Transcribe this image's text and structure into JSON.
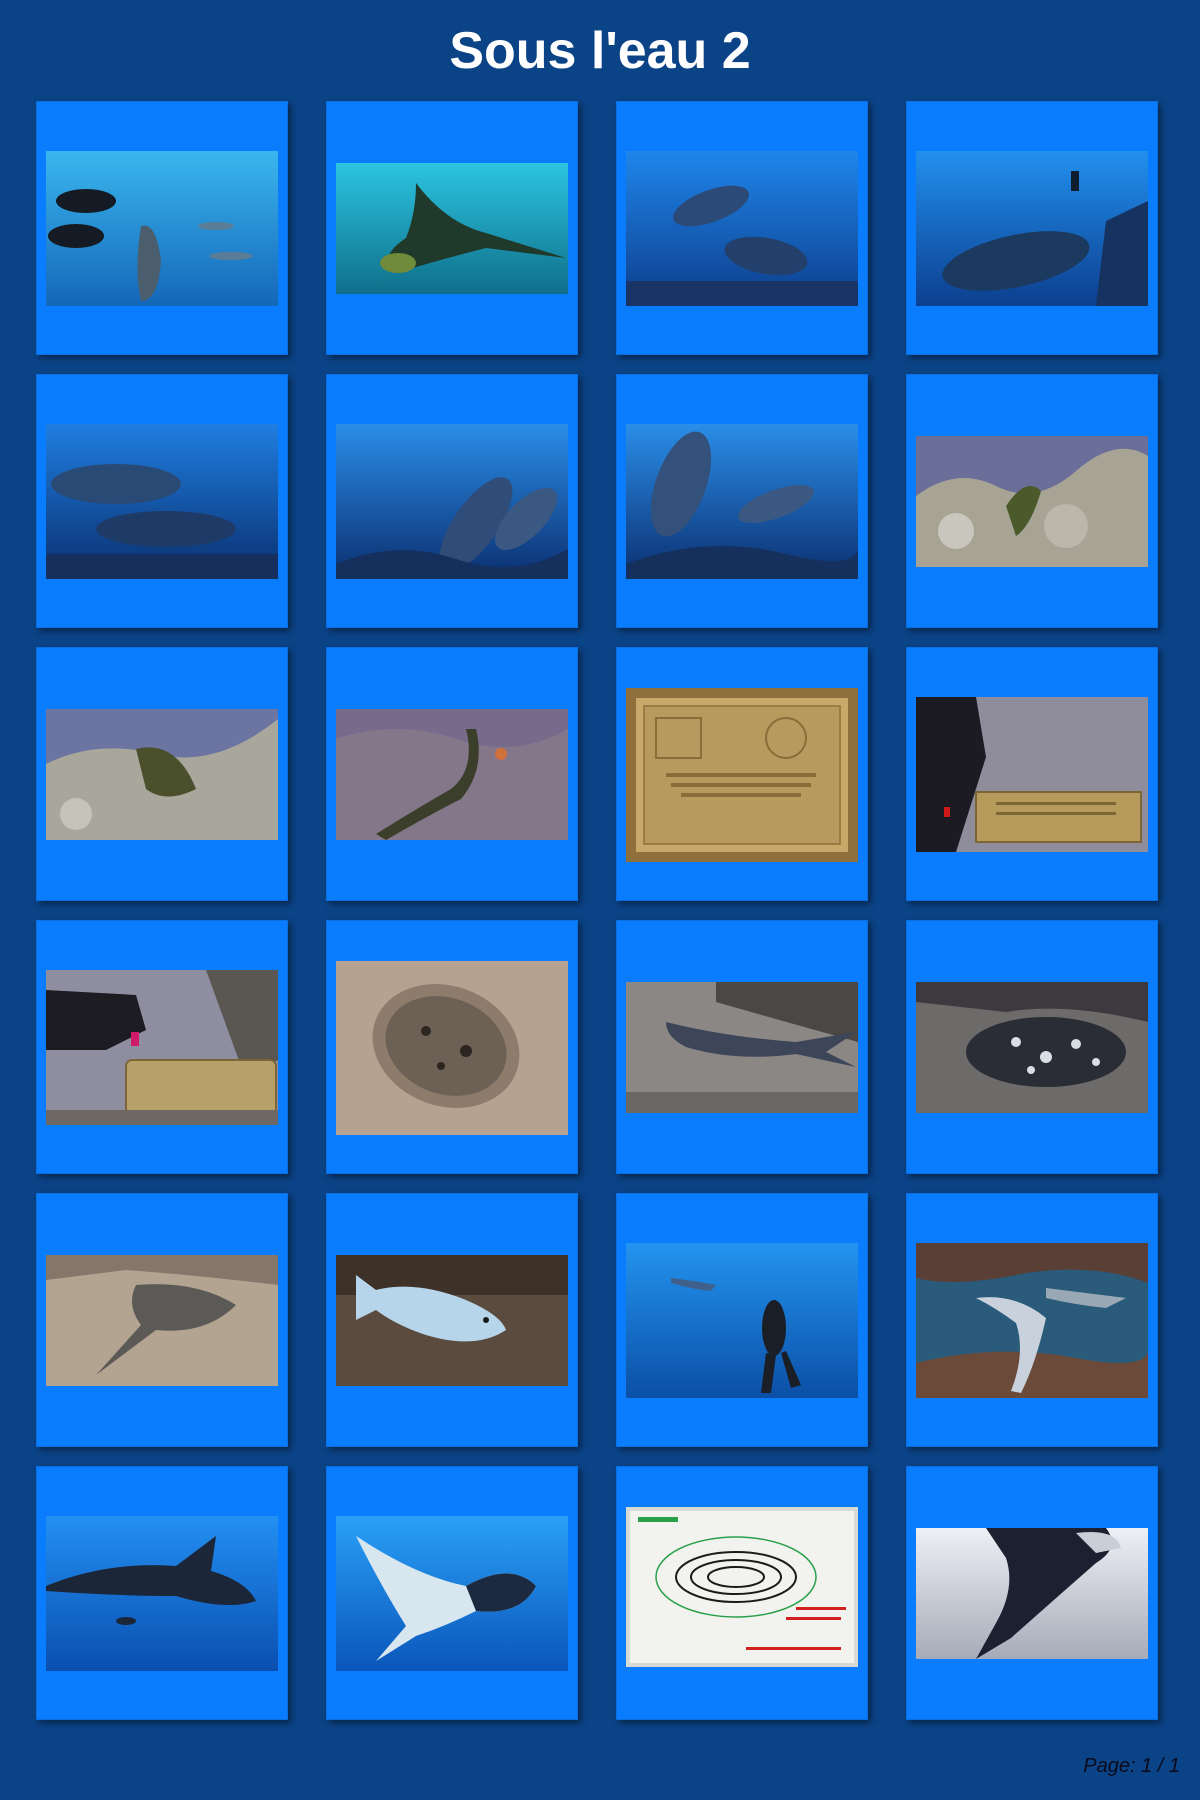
{
  "album": {
    "title": "Sous l'eau 2"
  },
  "footer": {
    "page_label": "Page: 1 / 1"
  },
  "thumbnails": [
    {
      "subject": "divers-with-dolphin",
      "colors": [
        "#2aa7e8",
        "#1467b8"
      ],
      "figure": "#1a2330"
    },
    {
      "subject": "manta-ray",
      "colors": [
        "#27b6d6",
        "#0f6f8a"
      ],
      "figure": "#1f3a2a"
    },
    {
      "subject": "two-dolphins",
      "colors": [
        "#1a78e0",
        "#0d3d8c"
      ],
      "figure": "#24416e"
    },
    {
      "subject": "dolphin-and-diver",
      "colors": [
        "#1b86e6",
        "#0c3f8f"
      ],
      "figure": "#1c3960"
    },
    {
      "subject": "dolphin-pair",
      "colors": [
        "#1a6fd6",
        "#0a2f6e"
      ],
      "figure": "#1e3a66"
    },
    {
      "subject": "dolphins-over-reef",
      "colors": [
        "#1e7ee3",
        "#0b2f70"
      ],
      "figure": "#233f6b"
    },
    {
      "subject": "dolphins-close",
      "colors": [
        "#1c7ae0",
        "#0b2f70"
      ],
      "figure": "#253f6a"
    },
    {
      "subject": "moray-eel-rocks",
      "colors": [
        "#7a7fa8",
        "#8a8a7e"
      ],
      "figure": "#4a5a2a"
    },
    {
      "subject": "moray-eel",
      "colors": [
        "#6f78a3",
        "#8c8c80"
      ],
      "figure": "#4a4f2c"
    },
    {
      "subject": "eel-on-reef",
      "colors": [
        "#7b6f8f",
        "#6a5d6a"
      ],
      "figure": "#3b3e2a"
    },
    {
      "subject": "unesco-plaque",
      "colors": [
        "#c9a86a",
        "#8f6f3c"
      ],
      "figure": "#b29355"
    },
    {
      "subject": "diver-at-plaque",
      "colors": [
        "#8f8c9c",
        "#6c6a70"
      ],
      "figure": "#1c1a22"
    },
    {
      "subject": "diver-reading-plaque",
      "colors": [
        "#8f8ea0",
        "#6d6864"
      ],
      "figure": "#1d1c22"
    },
    {
      "subject": "flounder",
      "colors": [
        "#b6a290",
        "#8d7b6b"
      ],
      "figure": "#5d5246"
    },
    {
      "subject": "whitetip-reef-shark",
      "colors": [
        "#8a8784",
        "#5f5c5a"
      ],
      "figure": "#3d4558"
    },
    {
      "subject": "grouper",
      "colors": [
        "#6d6a6a",
        "#3c3a3e"
      ],
      "figure": "#2a2d35"
    },
    {
      "subject": "ray-on-sand",
      "colors": [
        "#b3a391",
        "#85766a"
      ],
      "figure": "#5c5a56"
    },
    {
      "subject": "parrotfish",
      "colors": [
        "#6a5b4c",
        "#3e3228"
      ],
      "figure": "#b7d5ea"
    },
    {
      "subject": "diver-and-shark",
      "colors": [
        "#1a86e6",
        "#0b4fa6"
      ],
      "figure": "#1a1e26"
    },
    {
      "subject": "sharks-in-cave",
      "colors": [
        "#2a5b7a",
        "#6b4a3a"
      ],
      "figure": "#c9d2dc"
    },
    {
      "subject": "giant-manta",
      "colors": [
        "#1e84ea",
        "#0a4fb0"
      ],
      "figure": "#1b2638"
    },
    {
      "subject": "manta-underside",
      "colors": [
        "#1f8cf0",
        "#0a56bb"
      ],
      "figure": "#d8e6f0"
    },
    {
      "subject": "dive-site-whiteboard",
      "colors": [
        "#f2f2ef",
        "#d8d8d4"
      ],
      "figure": "#1a1a1a"
    },
    {
      "subject": "manta-silhouette",
      "colors": [
        "#e6e9f2",
        "#a6abb8"
      ],
      "figure": "#1c2030"
    }
  ]
}
